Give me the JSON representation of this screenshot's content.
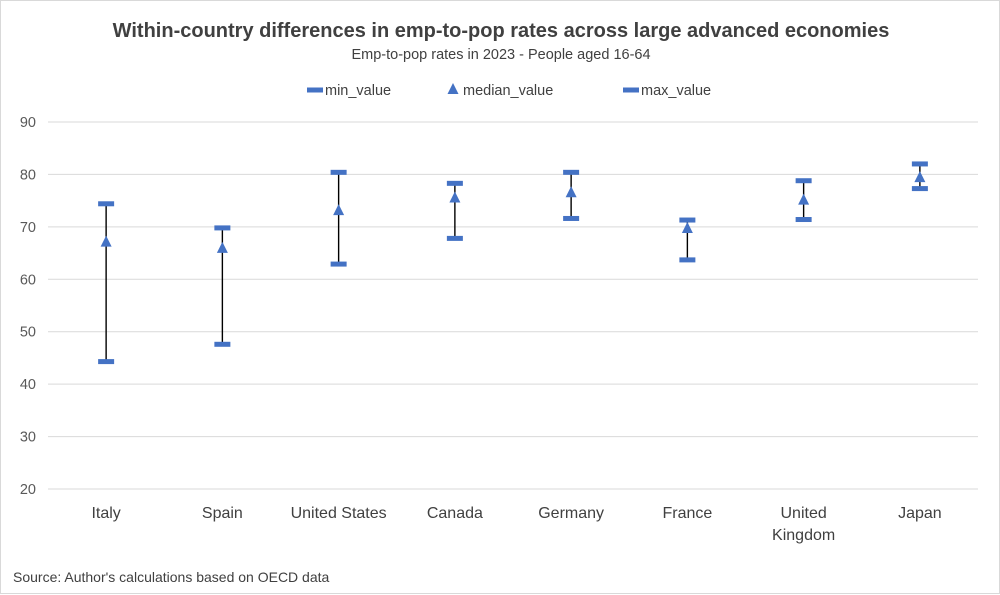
{
  "chart_data": {
    "type": "scatter",
    "title": "Within-country differences in emp-to-pop rates across large advanced economies",
    "subtitle": "Emp-to-pop rates in 2023 - People aged 16-64",
    "source": "Source: Author's calculations based on OECD data",
    "xlabel": "",
    "ylabel": "",
    "ylim": [
      20,
      90
    ],
    "yticks": [
      20,
      30,
      40,
      50,
      60,
      70,
      80,
      90
    ],
    "grid": true,
    "legend_position": "top",
    "categories": [
      [
        "Italy"
      ],
      [
        "Spain"
      ],
      [
        "United States"
      ],
      [
        "Canada"
      ],
      [
        "Germany"
      ],
      [
        "France"
      ],
      [
        "United",
        "Kingdom"
      ],
      [
        "Japan"
      ]
    ],
    "series": [
      {
        "name": "min_value",
        "marker": "dash",
        "values": [
          44.3,
          47.6,
          62.9,
          67.8,
          71.6,
          63.7,
          71.4,
          77.3
        ]
      },
      {
        "name": "median_value",
        "marker": "triangle",
        "values": [
          67.0,
          65.8,
          73.0,
          75.4,
          76.4,
          69.6,
          75.0,
          79.3
        ]
      },
      {
        "name": "max_value",
        "marker": "dash",
        "values": [
          74.4,
          69.8,
          80.4,
          78.3,
          80.4,
          71.3,
          78.8,
          82.0
        ]
      }
    ],
    "colors": {
      "marker": "#4472c4",
      "range_line": "#000000",
      "grid": "#d9d9d9",
      "text": "#404040",
      "tick_text": "#595959"
    }
  }
}
